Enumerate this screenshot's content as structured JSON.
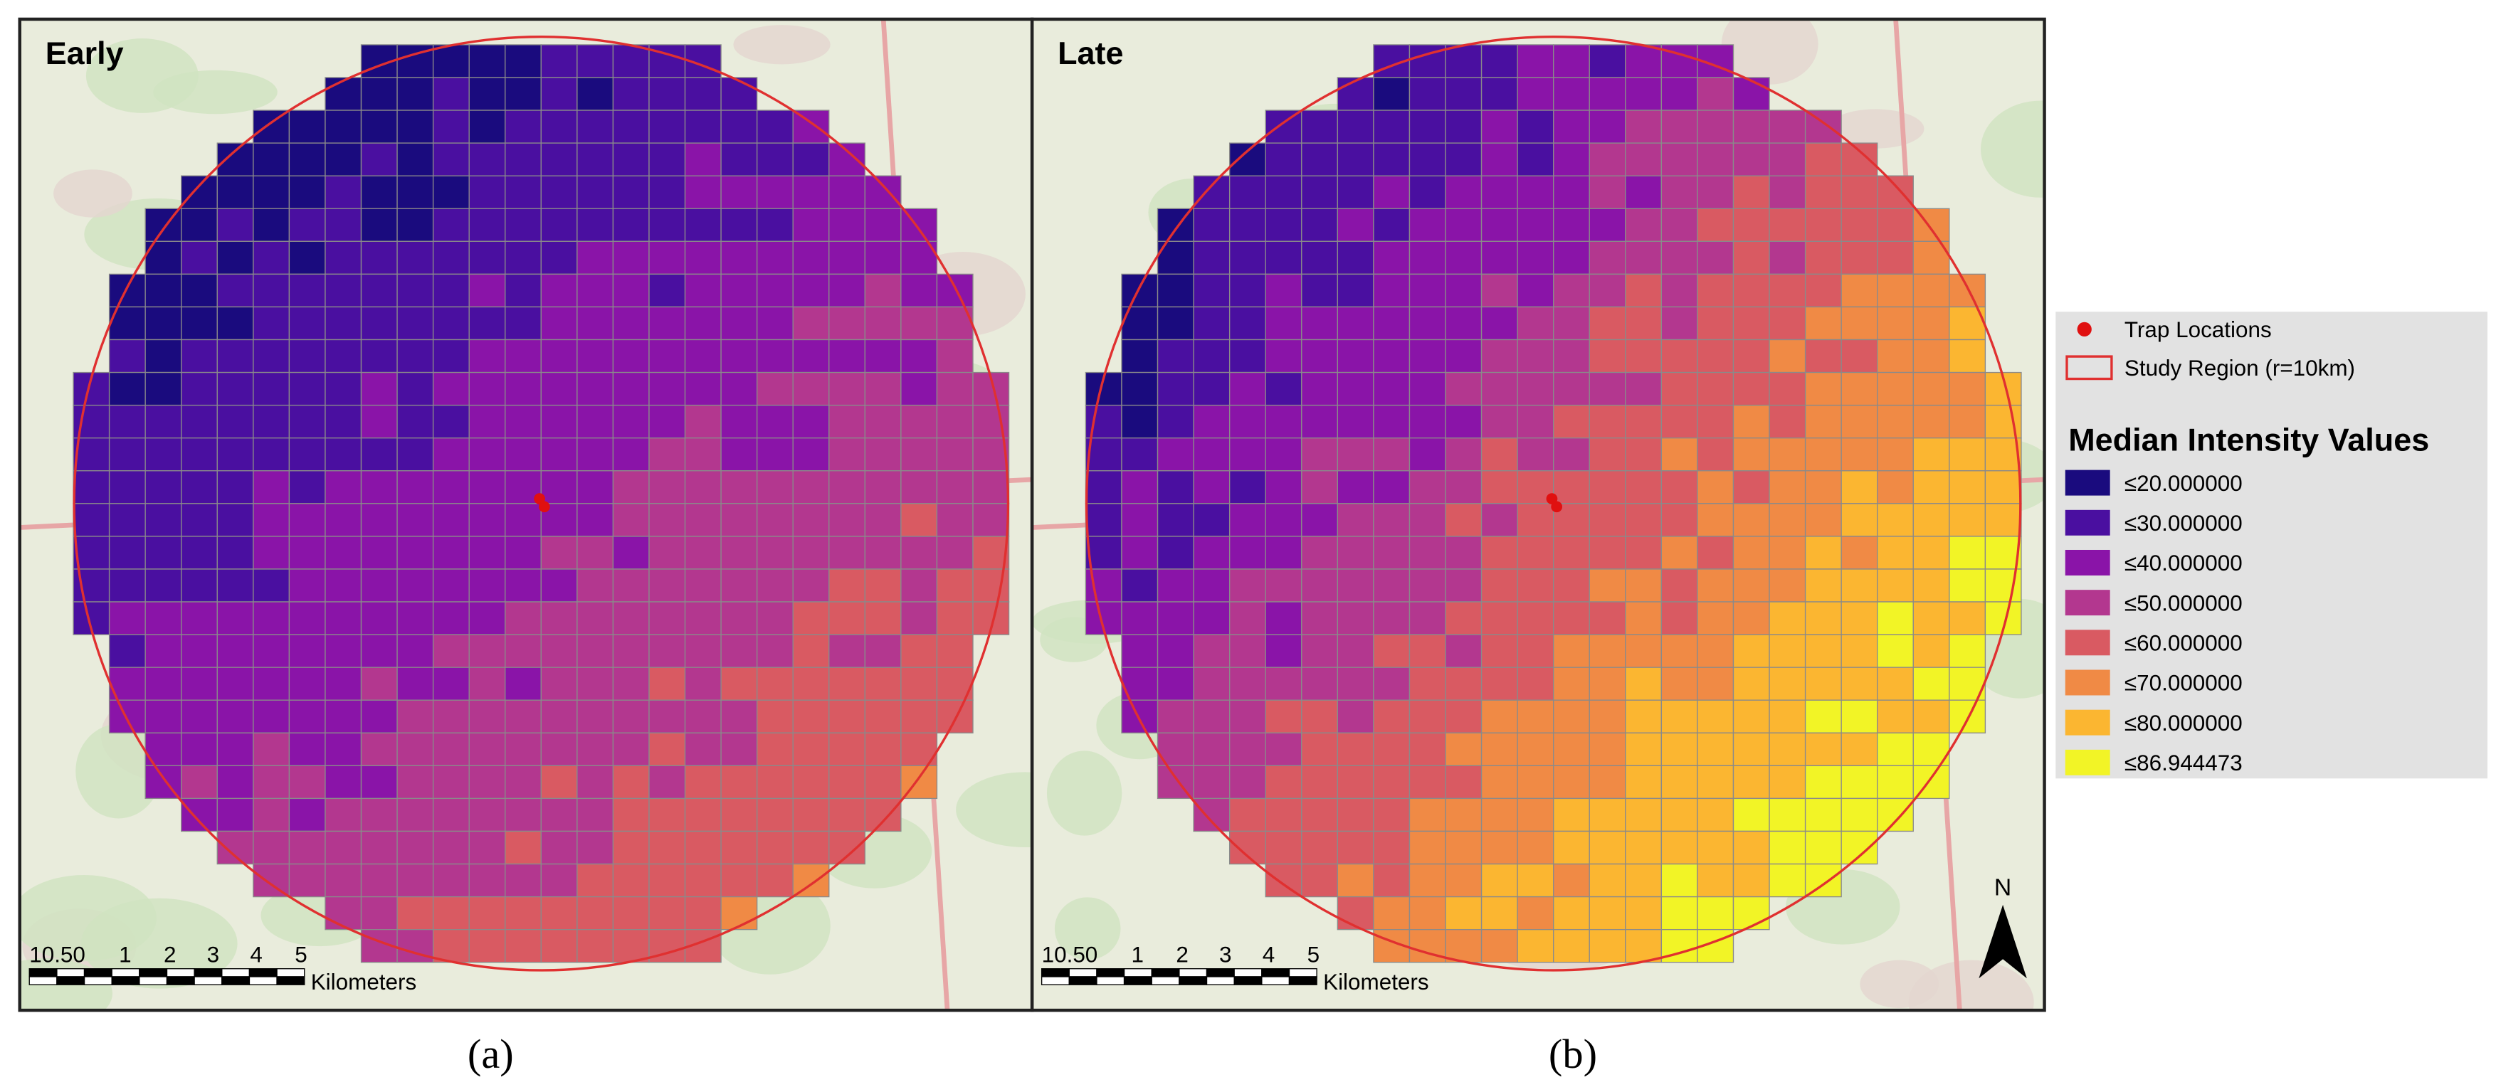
{
  "panels": [
    {
      "label": "Early",
      "caption": "(a)",
      "scale_labels": [
        "10.50",
        "1",
        "2",
        "3",
        "4",
        "5"
      ],
      "scale_unit": "Kilometers"
    },
    {
      "label": "Late",
      "caption": "(b)",
      "scale_labels": [
        "10.50",
        "1",
        "2",
        "3",
        "4",
        "5"
      ],
      "scale_unit": "Kilometers"
    }
  ],
  "north": "N",
  "legend": {
    "traps": "Trap Locations",
    "region": "Study Region (r=10km)",
    "title": "Median Intensity Values",
    "classes": [
      {
        "label": "≤20.000000",
        "color": "#1a0b7e"
      },
      {
        "label": "≤30.000000",
        "color": "#4a0fa0"
      },
      {
        "label": "≤40.000000",
        "color": "#8a14a8"
      },
      {
        "label": "≤50.000000",
        "color": "#b3378f"
      },
      {
        "label": "≤60.000000",
        "color": "#d95a62"
      },
      {
        "label": "≤70.000000",
        "color": "#f08a45"
      },
      {
        "label": "≤80.000000",
        "color": "#fbb631"
      },
      {
        "label": "≤86.944473",
        "color": "#f2f426"
      }
    ]
  }
}
